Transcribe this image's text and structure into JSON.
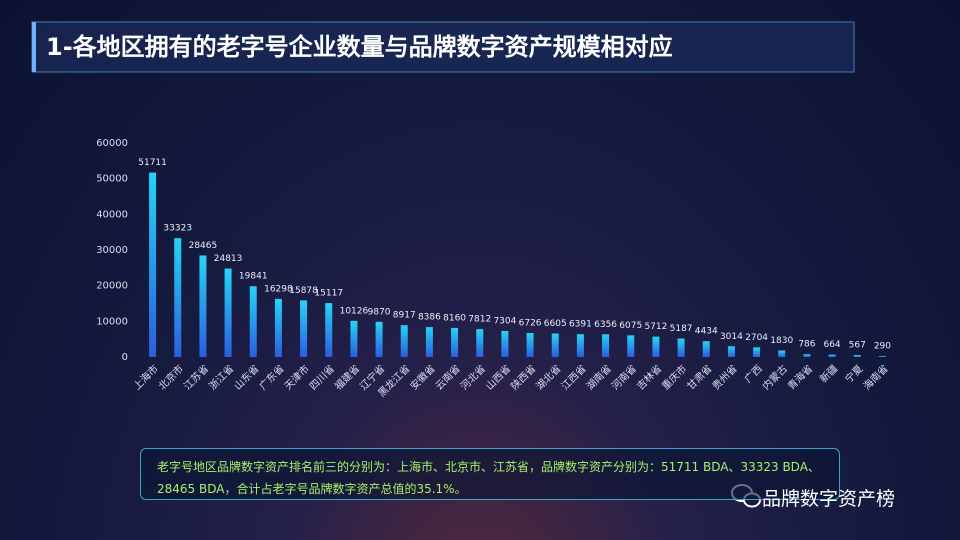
{
  "chart_data": {
    "type": "bar",
    "title": "1-各地区拥有的老字号企业数量与品牌数字资产规模相对应",
    "categories": [
      "上海市",
      "北京市",
      "江苏省",
      "浙江省",
      "山东省",
      "广东省",
      "天津市",
      "四川省",
      "福建省",
      "辽宁省",
      "黑龙江省",
      "安徽省",
      "云南省",
      "河北省",
      "山西省",
      "陕西省",
      "湖北省",
      "江西省",
      "湖南省",
      "河南省",
      "吉林省",
      "重庆市",
      "甘肃省",
      "贵州省",
      "广西",
      "内蒙古",
      "青海省",
      "新疆",
      "宁夏",
      "海南省"
    ],
    "values": [
      51711,
      33323,
      28465,
      24813,
      19841,
      16298,
      15878,
      15117,
      10126,
      9870,
      8917,
      8386,
      8160,
      7812,
      7304,
      6726,
      6605,
      6391,
      6356,
      6075,
      5712,
      5187,
      4434,
      3014,
      2704,
      1830,
      786,
      664,
      567,
      290
    ],
    "color": "#1fa8f0",
    "ylim": [
      0,
      60000
    ],
    "yticks": [
      0,
      10000,
      20000,
      30000,
      40000,
      50000,
      60000
    ],
    "grid": false,
    "annotation": "老字号地区品牌数字资产排名前三的分别为：上海市、北京市、江苏省，品牌数字资产分别为：51711  BDA、33323 BDA、28465 BDA，合计占老字号品牌数字资产总值的35.1%。"
  },
  "footer": {
    "brand": "品牌数字资产榜"
  }
}
